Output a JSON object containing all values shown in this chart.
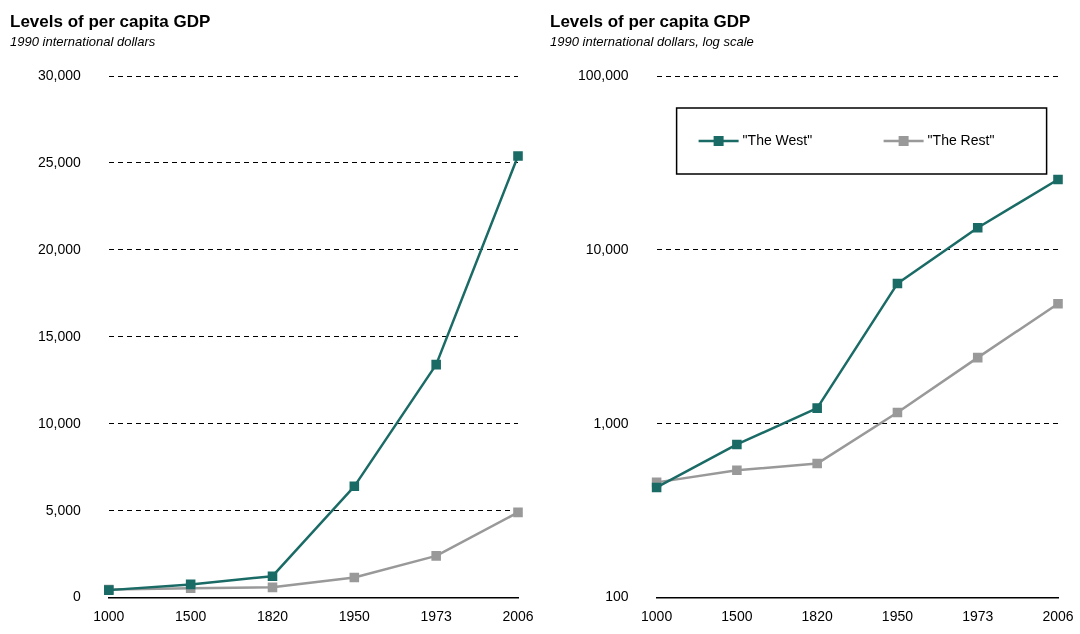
{
  "chart_data": [
    {
      "type": "line",
      "title": "Levels of per capita GDP",
      "subtitle": "1990 international dollars",
      "categories": [
        "1000",
        "1500",
        "1820",
        "1950",
        "1973",
        "2006"
      ],
      "series": [
        {
          "color": "#1a6b66",
          "values": [
            430,
            760,
            1230,
            6400,
            13400,
            25400
          ]
        },
        {
          "color": "#999999",
          "values": [
            460,
            540,
            590,
            1160,
            2400,
            4900
          ]
        }
      ],
      "ylim": [
        0,
        30000
      ],
      "yticks": [
        0,
        {
          "value": 5000,
          "label": "5,000"
        },
        {
          "value": 10000,
          "label": "10,000"
        },
        {
          "value": 15000,
          "label": "15,000"
        },
        {
          "value": 20000,
          "label": "20,000"
        },
        {
          "value": 25000,
          "label": "25,000"
        },
        {
          "value": 30000,
          "label": "30,000"
        }
      ],
      "grid": "y",
      "marker": "square",
      "legend": false
    },
    {
      "type": "line",
      "title": "Levels of per capita GDP",
      "subtitle": "1990 international dollars, log scale",
      "categories": [
        "1000",
        "1500",
        "1820",
        "1950",
        "1973",
        "2006"
      ],
      "series": [
        {
          "name": "\"The West\"",
          "color": "#1a6b66",
          "values": [
            430,
            760,
            1230,
            6400,
            13400,
            25400
          ]
        },
        {
          "name": "\"The Rest\"",
          "color": "#999999",
          "values": [
            460,
            540,
            590,
            1160,
            2400,
            4900
          ]
        }
      ],
      "ylim": [
        100,
        100000
      ],
      "yticks": [
        100,
        {
          "value": 1000,
          "label": "1,000"
        },
        {
          "value": 10000,
          "label": "10,000"
        },
        {
          "value": 100000,
          "label": "100,000"
        }
      ],
      "log": true,
      "grid": "y",
      "marker": "square",
      "legend": "top left"
    }
  ]
}
